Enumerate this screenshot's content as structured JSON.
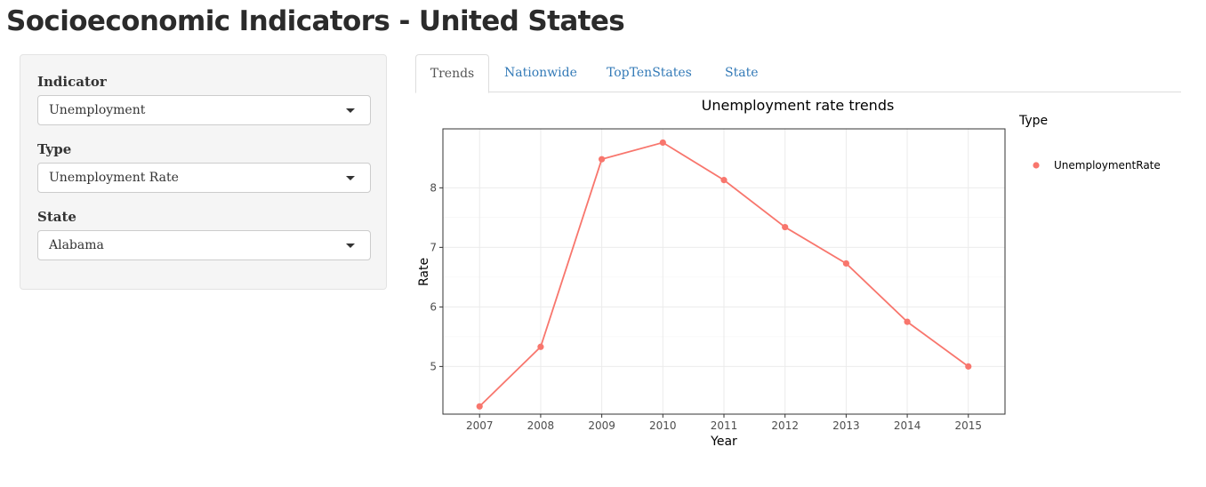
{
  "page": {
    "title": "Socioeconomic Indicators - United States"
  },
  "sidebar": {
    "fields": [
      {
        "label": "Indicator",
        "value": "Unemployment"
      },
      {
        "label": "Type",
        "value": "Unemployment Rate"
      },
      {
        "label": "State",
        "value": "Alabama"
      }
    ]
  },
  "tabs": [
    {
      "label": "Trends",
      "active": true
    },
    {
      "label": "Nationwide",
      "active": false
    },
    {
      "label": "TopTenStates",
      "active": false
    },
    {
      "label": "State",
      "active": false
    }
  ],
  "colors": {
    "series": "#f8766d",
    "link": "#337ab7"
  },
  "chart_data": {
    "type": "line",
    "title": "Unemployment rate trends",
    "xlabel": "Year",
    "ylabel": "Rate",
    "x": [
      2007,
      2008,
      2009,
      2010,
      2011,
      2012,
      2013,
      2014,
      2015
    ],
    "series": [
      {
        "name": "UnemploymentRate",
        "values": [
          4.33,
          5.33,
          8.48,
          8.76,
          8.13,
          7.34,
          6.73,
          5.75,
          5.0
        ]
      }
    ],
    "yticks": [
      5,
      6,
      7,
      8
    ],
    "ylim": [
      4.2,
      8.99
    ],
    "legend_title": "Type",
    "legend_position": "right",
    "grid": true
  }
}
